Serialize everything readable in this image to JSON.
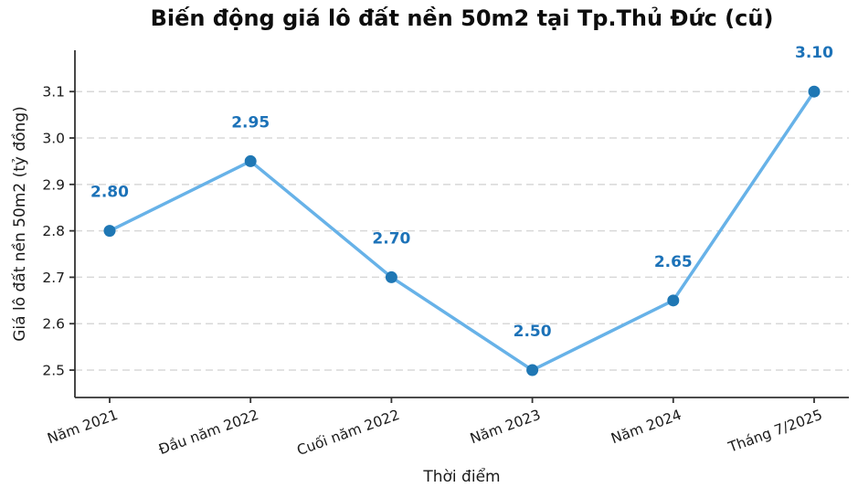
{
  "figure": {
    "background": "#ffffff"
  },
  "chart_data": {
    "type": "line",
    "title": "Biến động giá lô đất nền 50m2 tại Tp.Thủ Đức (cũ)",
    "xlabel": "Thời điểm",
    "ylabel": "Giá lô đất nền 50m2 (tỷ đồng)",
    "categories": [
      "Năm 2021",
      "Đầu năm 2022",
      "Cuối năm 2022",
      "Năm 2023",
      "Năm 2024",
      "Tháng 7/2025"
    ],
    "series": [
      {
        "name": "Giá lô đất nền 50m2",
        "values": [
          2.8,
          2.95,
          2.7,
          2.5,
          2.65,
          3.1
        ],
        "point_labels": [
          "2.80",
          "2.95",
          "2.70",
          "2.50",
          "2.65",
          "3.10"
        ]
      }
    ],
    "yticks": [
      "2.5",
      "2.6",
      "2.7",
      "2.8",
      "2.9",
      "3.0",
      "3.1"
    ],
    "ylim": [
      2.441,
      3.189
    ],
    "grid": "horizontal dashed",
    "legend": "none",
    "x_tick_rotation_deg": 20,
    "colors": {
      "line": "#67b2e8",
      "marker": "#1f77b4",
      "point_label": "#1c72b8",
      "grid": "#d8d8d8",
      "spine": "#333333",
      "tick_label": "#1a1a1a"
    }
  }
}
